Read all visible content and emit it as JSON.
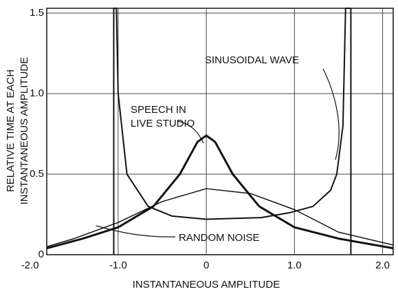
{
  "chart_data": {
    "type": "line",
    "xlabel": "INSTANTANEOUS AMPLITUDE",
    "ylabel": [
      "RELATIVE TIME AT EACH",
      "INSTANTANEOUS AMPLITUDE"
    ],
    "xlim": [
      -1.81,
      2.12
    ],
    "ylim": [
      0,
      1.53
    ],
    "xticks": [
      {
        "value": -2.0,
        "label": "-2.0"
      },
      {
        "value": -1.0,
        "label": "-1.0"
      },
      0,
      {
        "value": 1.0,
        "label": "1.0"
      },
      {
        "value": 2.0,
        "label": "2.0"
      }
    ],
    "yticks": [
      0,
      0.5,
      {
        "value": 1.0,
        "label": "1.0"
      },
      1.5
    ],
    "grid": true,
    "series": [
      {
        "color": "#111",
        "width": 2,
        "x": [
          -1.05,
          -1.05,
          -1.02,
          -1.0,
          -0.9,
          -0.66,
          -0.39,
          0,
          0.62,
          0.94,
          1.21,
          1.41,
          1.48,
          1.55,
          1.58,
          1.64,
          1.64
        ],
        "values": [
          0,
          1.53,
          1.53,
          1.0,
          0.5,
          0.3,
          0.24,
          0.22,
          0.23,
          0.26,
          0.3,
          0.4,
          0.5,
          0.8,
          1.53,
          1.53,
          0
        ]
      },
      {
        "color": "#111",
        "width": 3,
        "x": [
          -1.81,
          -1.4,
          -1.0,
          -0.6,
          -0.3,
          -0.1,
          0,
          0.1,
          0.3,
          0.6,
          1.0,
          1.5,
          2.12
        ],
        "values": [
          0.04,
          0.1,
          0.17,
          0.3,
          0.5,
          0.7,
          0.74,
          0.7,
          0.5,
          0.3,
          0.17,
          0.1,
          0.04
        ]
      },
      {
        "color": "#111",
        "width": 1.5,
        "x": [
          -1.81,
          -1.5,
          -1.0,
          -0.5,
          0,
          0.5,
          1.0,
          1.5,
          2.12
        ],
        "values": [
          0.05,
          0.1,
          0.2,
          0.33,
          0.41,
          0.38,
          0.28,
          0.14,
          0.06
        ]
      }
    ],
    "annotations": [
      {
        "text": "SINUSOIDAL WAVE"
      },
      {
        "text": "SPEECH IN"
      },
      {
        "text": "LIVE STUDIO"
      },
      {
        "text": "RANDOM NOISE"
      }
    ]
  }
}
